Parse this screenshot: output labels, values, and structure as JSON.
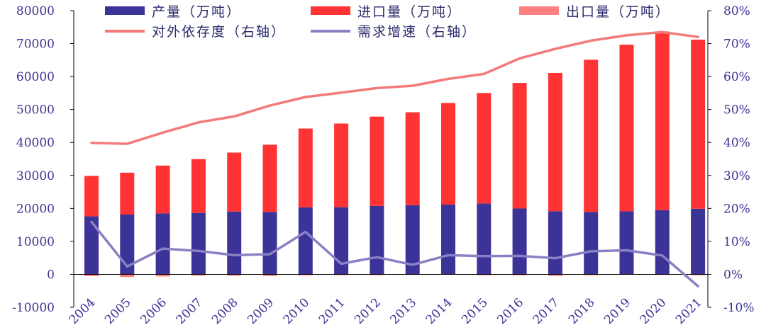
{
  "chart_data": {
    "type": "bar",
    "categories": [
      "2004",
      "2005",
      "2006",
      "2007",
      "2008",
      "2009",
      "2010",
      "2011",
      "2012",
      "2013",
      "2014",
      "2015",
      "2016",
      "2017",
      "2018",
      "2019",
      "2020",
      "2021"
    ],
    "series": [
      {
        "name": "产量（万吨）",
        "kind": "stacked-bar",
        "axis": "left",
        "color": "#3b3398",
        "values": [
          17587,
          18135,
          18477,
          18632,
          19044,
          18949,
          20301,
          20365,
          20748,
          20992,
          21143,
          21456,
          19969,
          19151,
          18911,
          19101,
          19477,
          19898
        ]
      },
      {
        "name": "进口量（万吨）",
        "kind": "stacked-bar",
        "axis": "left",
        "color": "#ff3333",
        "values": [
          12272,
          12708,
          14517,
          16318,
          17888,
          20379,
          23931,
          25378,
          27102,
          28174,
          30837,
          33550,
          38101,
          41957,
          46190,
          50568,
          54201,
          51298
        ]
      },
      {
        "name": "出口量（万吨）",
        "kind": "stacked-bar-negative",
        "axis": "left",
        "color": "#ff8080",
        "values": [
          -549,
          -807,
          -634,
          -389,
          -424,
          -507,
          -303,
          -252,
          -243,
          -162,
          -60,
          -287,
          -294,
          -486,
          -263,
          -81,
          -164,
          -261
        ]
      },
      {
        "name": "对外依存度（右轴）",
        "kind": "line",
        "axis": "right",
        "color": "#f47a7a",
        "values": [
          39.9,
          39.6,
          43.0,
          46.1,
          47.9,
          51.2,
          53.8,
          55.1,
          56.5,
          57.2,
          59.3,
          60.8,
          65.5,
          68.4,
          70.9,
          72.5,
          73.5,
          72.0
        ]
      },
      {
        "name": "需求增速（右轴）",
        "kind": "line",
        "axis": "right",
        "color": "#8a80c4",
        "values": [
          15.9,
          2.4,
          7.8,
          7.1,
          5.8,
          6.1,
          12.9,
          3.2,
          5.2,
          2.9,
          5.8,
          5.5,
          5.6,
          4.9,
          7.0,
          7.3,
          5.7,
          -3.6
        ]
      }
    ],
    "ylim": [
      -10000,
      80000
    ],
    "y_ticks": [
      "-10000",
      "0",
      "10000",
      "20000",
      "30000",
      "40000",
      "50000",
      "60000",
      "70000",
      "80000"
    ],
    "y2lim": [
      -10,
      80
    ],
    "y2_ticks": [
      "-10%",
      "0%",
      "10%",
      "20%",
      "30%",
      "40%",
      "50%",
      "60%",
      "70%",
      "80%"
    ],
    "title": "",
    "xlabel": "",
    "ylabel": "",
    "grid": false,
    "legend_position": "top",
    "legend_labels": [
      "产量（万吨）",
      "进口量（万吨）",
      "出口量（万吨）",
      "对外依存度（右轴）",
      "需求增速（右轴）"
    ]
  }
}
